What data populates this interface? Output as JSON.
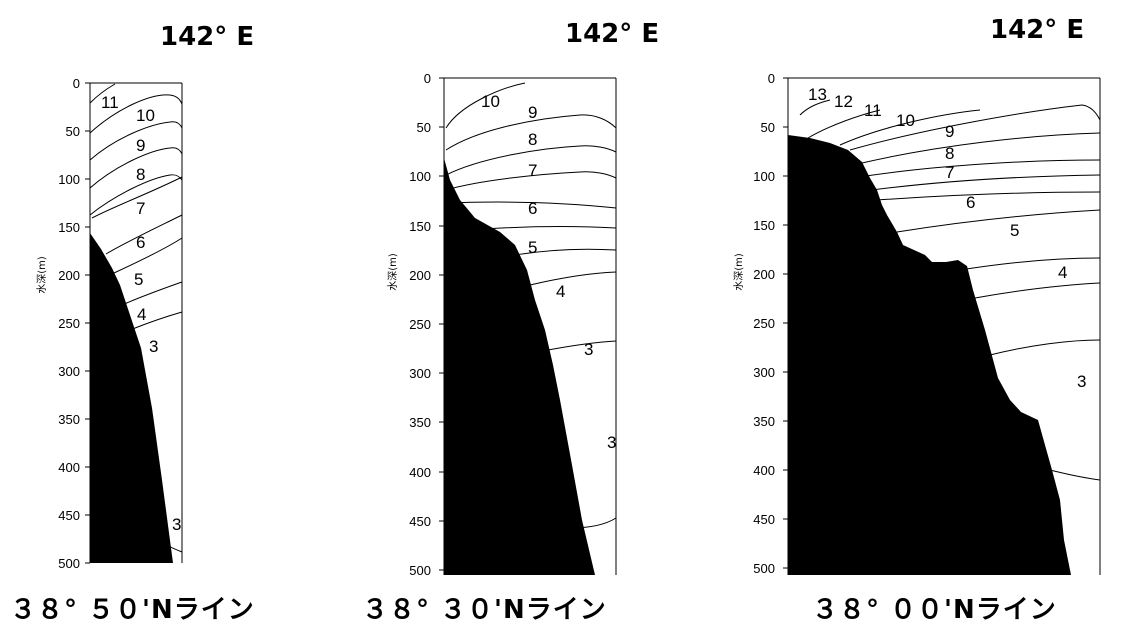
{
  "depth_axis": {
    "label": "水深(m)",
    "ticks": [
      0,
      50,
      100,
      150,
      200,
      250,
      300,
      350,
      400,
      450,
      500
    ]
  },
  "panels": [
    {
      "longitude_label": "142° E",
      "line_label": "３８° ５０'Nライン",
      "isotherm_labels": [
        "11",
        "10",
        "9",
        "8",
        "7",
        "6",
        "5",
        "4",
        "3",
        "3"
      ]
    },
    {
      "longitude_label": "142° E",
      "line_label": "３８° ３０'Nライン",
      "isotherm_labels": [
        "10",
        "9",
        "8",
        "7",
        "6",
        "5",
        "4",
        "3",
        "3"
      ]
    },
    {
      "longitude_label": "142° E",
      "line_label": "３８° ００'Nライン",
      "isotherm_labels": [
        "13",
        "12",
        "11",
        "10",
        "9",
        "8",
        "7",
        "6",
        "5",
        "4",
        "3"
      ]
    }
  ]
}
